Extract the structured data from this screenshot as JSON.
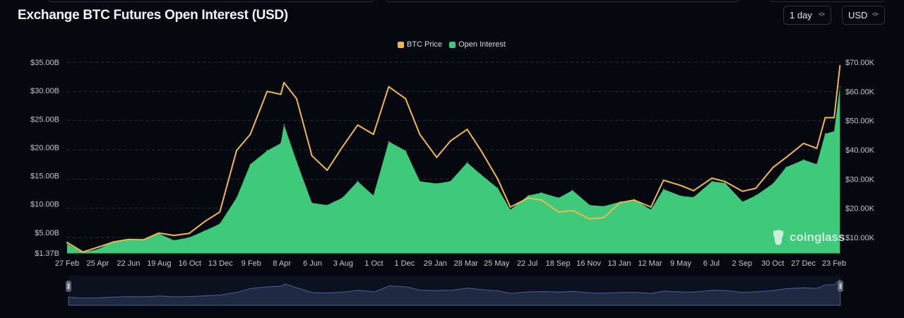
{
  "header": {
    "title": "Exchange BTC Futures Open Interest (USD)",
    "interval_select": "1 day",
    "currency_select": "USD"
  },
  "watermark": "coinglass",
  "chart_data": {
    "type": "line+area",
    "title": "Exchange BTC Futures Open Interest (USD)",
    "legend": [
      "BTC Price",
      "Open Interest"
    ],
    "legend_placement": "top-center",
    "grid": true,
    "x_tick_labels": [
      "27 Feb",
      "25 Apr",
      "22 Jun",
      "19 Aug",
      "16 Oct",
      "13 Dec",
      "9 Feb",
      "8 Apr",
      "6 Jun",
      "3 Aug",
      "1 Oct",
      "1 Dec",
      "29 Jan",
      "28 Mar",
      "25 May",
      "22 Jul",
      "18 Sep",
      "16 Nov",
      "13 Jan",
      "12 Mar",
      "9 May",
      "6 Jul",
      "2 Sep",
      "30 Oct",
      "27 Dec",
      "23 Feb"
    ],
    "x_range": [
      "2020-02-27",
      "2024-03-06"
    ],
    "x_tick_range": [
      "2020-02-27",
      "2024-02-23"
    ],
    "left_axis": {
      "ticks": [
        "$35.00B",
        "$30.00B",
        "$25.00B",
        "$20.00B",
        "$15.00B",
        "$10.00B",
        "$5.00B",
        "$1.37B"
      ],
      "tick_values": [
        35,
        30,
        25,
        20,
        15,
        10,
        5,
        1.37
      ],
      "ylim": [
        1.37,
        35
      ],
      "unit": "USD billions"
    },
    "right_axis": {
      "ticks": [
        "$70.00K",
        "$60.00K",
        "$50.00K",
        "$40.00K",
        "$30.00K",
        "$20.00K",
        "$10.00K"
      ],
      "tick_values": [
        70,
        60,
        50,
        40,
        30,
        20,
        10
      ],
      "ylim": [
        4.67,
        70
      ],
      "unit": "USD thousands"
    },
    "colors": {
      "BTC Price": "#f0b74a",
      "Open Interest": "#3ec97b"
    },
    "x": [
      "2020-02-27",
      "2020-03-28",
      "2020-04-25",
      "2020-05-26",
      "2020-06-22",
      "2020-07-21",
      "2020-08-19",
      "2020-09-17",
      "2020-10-16",
      "2020-11-15",
      "2020-12-13",
      "2021-01-14",
      "2021-02-09",
      "2021-03-13",
      "2021-04-08",
      "2021-04-14",
      "2021-05-08",
      "2021-06-06",
      "2021-07-05",
      "2021-08-03",
      "2021-09-01",
      "2021-10-01",
      "2021-10-30",
      "2021-12-01",
      "2021-12-28",
      "2022-01-29",
      "2022-02-24",
      "2022-03-28",
      "2022-04-23",
      "2022-05-25",
      "2022-06-18",
      "2022-07-22",
      "2022-08-16",
      "2022-09-18",
      "2022-10-14",
      "2022-11-16",
      "2022-12-12",
      "2023-01-13",
      "2023-02-08",
      "2023-03-12",
      "2023-04-05",
      "2023-05-09",
      "2023-06-01",
      "2023-07-06",
      "2023-07-31",
      "2023-09-02",
      "2023-09-27",
      "2023-10-30",
      "2023-11-24",
      "2023-12-27",
      "2024-01-21",
      "2024-02-06",
      "2024-02-23",
      "2024-03-05"
    ],
    "series": [
      {
        "name": "Open Interest",
        "axis": "left",
        "kind": "area",
        "values": [
          3.0,
          1.5,
          2.0,
          3.4,
          3.8,
          3.6,
          4.8,
          3.6,
          4.1,
          5.3,
          6.5,
          11.1,
          17.0,
          19.4,
          20.7,
          24.0,
          17.5,
          10.2,
          9.8,
          11.1,
          14.0,
          11.5,
          21.0,
          19.4,
          14.0,
          13.6,
          14.0,
          17.3,
          15.2,
          12.8,
          9.0,
          11.5,
          12.0,
          11.1,
          12.4,
          9.8,
          9.6,
          10.4,
          10.8,
          9.0,
          12.6,
          11.4,
          11.2,
          14.0,
          13.7,
          10.4,
          11.5,
          13.6,
          16.5,
          17.8,
          17.0,
          22.4,
          22.8,
          30.7
        ]
      },
      {
        "name": "BTC Price",
        "axis": "right",
        "kind": "line",
        "values": [
          8.3,
          5.0,
          6.6,
          8.5,
          9.3,
          9.2,
          11.5,
          10.7,
          11.4,
          15.5,
          18.7,
          39.8,
          45.3,
          60.0,
          59.0,
          63.0,
          57.5,
          38.0,
          33.0,
          41.0,
          48.5,
          45.3,
          61.6,
          57.5,
          45.3,
          37.4,
          43.0,
          47.0,
          39.8,
          30.0,
          20.4,
          23.5,
          22.8,
          18.7,
          19.2,
          16.3,
          16.8,
          21.9,
          22.8,
          20.4,
          29.6,
          27.7,
          26.0,
          30.3,
          29.1,
          25.8,
          26.8,
          34.0,
          37.4,
          42.2,
          40.5,
          51.0,
          51.0,
          68.8
        ]
      }
    ]
  }
}
